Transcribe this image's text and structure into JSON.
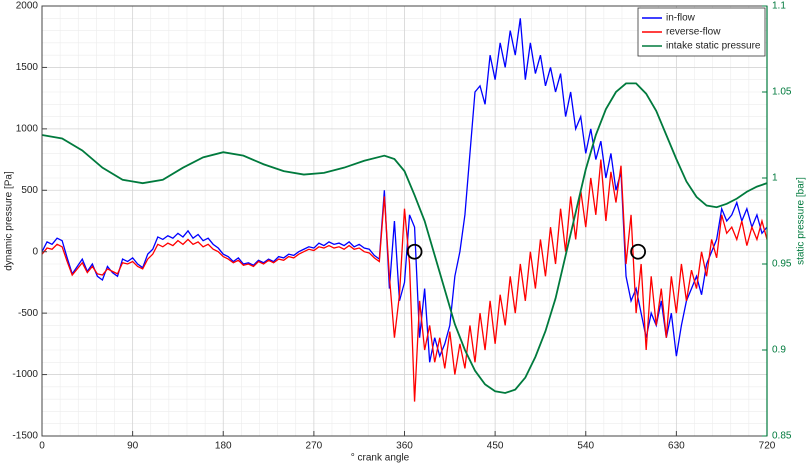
{
  "chart_data": {
    "type": "line",
    "xlabel": "° crank angle",
    "ylabel": "dynamic pressure [Pa]",
    "y2label": "static pressure [bar]",
    "xlim": [
      0,
      720
    ],
    "xticks": [
      0,
      90,
      180,
      270,
      360,
      450,
      540,
      630,
      720
    ],
    "ylim": [
      -1500,
      2000
    ],
    "yticks": [
      -1500,
      -1000,
      -500,
      0,
      500,
      1000,
      1500,
      2000
    ],
    "y2lim": [
      0.85,
      1.1
    ],
    "y2ticks": [
      0.85,
      0.9,
      0.95,
      1,
      1.05,
      1.1
    ],
    "grid": true,
    "minor_grid": true,
    "legend": "upper right",
    "y2color": "#007a3d",
    "x": [
      0,
      5,
      10,
      15,
      20,
      25,
      30,
      35,
      40,
      45,
      50,
      55,
      60,
      65,
      70,
      75,
      80,
      85,
      90,
      95,
      100,
      105,
      110,
      115,
      120,
      125,
      130,
      135,
      140,
      145,
      150,
      155,
      160,
      165,
      170,
      175,
      180,
      185,
      190,
      195,
      200,
      205,
      210,
      215,
      220,
      225,
      230,
      235,
      240,
      245,
      250,
      255,
      260,
      265,
      270,
      275,
      280,
      285,
      290,
      295,
      300,
      305,
      310,
      315,
      320,
      325,
      330,
      335,
      340,
      345,
      350,
      355,
      360,
      365,
      370,
      375,
      380,
      385,
      390,
      395,
      400,
      405,
      410,
      415,
      420,
      425,
      430,
      435,
      440,
      445,
      450,
      455,
      460,
      465,
      470,
      475,
      480,
      485,
      490,
      495,
      500,
      505,
      510,
      515,
      520,
      525,
      530,
      535,
      540,
      545,
      550,
      555,
      560,
      565,
      570,
      575,
      580,
      585,
      590,
      595,
      600,
      605,
      610,
      615,
      620,
      625,
      630,
      635,
      640,
      645,
      650,
      655,
      660,
      665,
      670,
      675,
      680,
      685,
      690,
      695,
      700,
      705,
      710,
      715,
      720
    ],
    "series": [
      {
        "name": "in-flow",
        "color": "#0000ff",
        "values": [
          0,
          80,
          60,
          110,
          90,
          -50,
          -180,
          -120,
          -60,
          -160,
          -100,
          -200,
          -230,
          -120,
          -170,
          -200,
          -60,
          -80,
          -50,
          -100,
          -130,
          -20,
          20,
          120,
          100,
          130,
          110,
          150,
          120,
          170,
          110,
          140,
          90,
          110,
          60,
          30,
          -20,
          -40,
          -80,
          -50,
          -100,
          -90,
          -110,
          -70,
          -90,
          -60,
          -80,
          -40,
          -50,
          -20,
          -30,
          0,
          20,
          40,
          30,
          70,
          50,
          80,
          60,
          70,
          50,
          80,
          40,
          60,
          30,
          20,
          -30,
          -60,
          500,
          -300,
          250,
          -400,
          -250,
          300,
          200,
          -700,
          -300,
          -900,
          -700,
          -850,
          -750,
          -600,
          -200,
          0,
          300,
          800,
          1300,
          1350,
          1200,
          1600,
          1400,
          1700,
          1500,
          1800,
          1600,
          1900,
          1400,
          1700,
          1450,
          1600,
          1350,
          1500,
          1300,
          1450,
          1100,
          1300,
          1000,
          1100,
          800,
          1000,
          750,
          900,
          600,
          800,
          500,
          650,
          -200,
          -400,
          -300,
          -500,
          -700,
          -500,
          -600,
          -400,
          -700,
          -500,
          -850,
          -600,
          -400,
          -300,
          -200,
          -350,
          -100,
          0,
          100,
          350,
          250,
          300,
          400,
          250,
          350,
          200,
          300,
          150,
          200
        ]
      },
      {
        "name": "reverse-flow",
        "color": "#ff0000",
        "values": [
          -20,
          30,
          20,
          60,
          40,
          -80,
          -190,
          -140,
          -90,
          -170,
          -120,
          -180,
          -190,
          -140,
          -160,
          -180,
          -90,
          -100,
          -80,
          -120,
          -140,
          -60,
          -20,
          60,
          40,
          70,
          50,
          90,
          60,
          100,
          60,
          80,
          40,
          60,
          20,
          0,
          -40,
          -60,
          -90,
          -70,
          -110,
          -100,
          -120,
          -80,
          -100,
          -70,
          -90,
          -60,
          -70,
          -40,
          -50,
          -20,
          0,
          20,
          10,
          40,
          30,
          50,
          30,
          40,
          20,
          50,
          20,
          30,
          0,
          -10,
          -50,
          -80,
          450,
          -200,
          -700,
          -350,
          350,
          -100,
          -1220,
          -400,
          -800,
          -600,
          -900,
          -700,
          -950,
          -650,
          -1000,
          -750,
          -950,
          -600,
          -900,
          -500,
          -800,
          -400,
          -750,
          -350,
          -600,
          -200,
          -500,
          -100,
          -400,
          0,
          -300,
          100,
          -200,
          200,
          -100,
          350,
          0,
          450,
          100,
          500,
          200,
          600,
          300,
          750,
          250,
          650,
          400,
          700,
          -100,
          300,
          -500,
          -100,
          -800,
          -200,
          -600,
          -300,
          -700,
          -200,
          -500,
          -100,
          -400,
          -150,
          -300,
          0,
          -200,
          100,
          -50,
          300,
          150,
          200,
          100,
          250,
          50,
          200,
          100,
          250,
          100
        ]
      },
      {
        "name": "intake static pressure",
        "color": "#007a3d",
        "axis": "y2",
        "x": [
          0,
          20,
          40,
          60,
          80,
          100,
          120,
          140,
          160,
          180,
          200,
          220,
          240,
          260,
          280,
          300,
          320,
          340,
          350,
          360,
          370,
          380,
          390,
          400,
          410,
          420,
          430,
          440,
          450,
          460,
          470,
          480,
          490,
          500,
          510,
          520,
          530,
          540,
          550,
          560,
          570,
          580,
          590,
          600,
          610,
          620,
          630,
          640,
          650,
          660,
          670,
          680,
          690,
          700,
          710,
          720
        ],
        "values": [
          1.025,
          1.023,
          1.016,
          1.006,
          0.999,
          0.997,
          0.999,
          1.006,
          1.012,
          1.015,
          1.013,
          1.008,
          1.004,
          1.002,
          1.003,
          1.006,
          1.01,
          1.013,
          1.011,
          1.004,
          0.99,
          0.975,
          0.955,
          0.935,
          0.915,
          0.9,
          0.888,
          0.88,
          0.876,
          0.875,
          0.877,
          0.884,
          0.896,
          0.911,
          0.93,
          0.955,
          0.98,
          1.005,
          1.025,
          1.04,
          1.05,
          1.055,
          1.055,
          1.049,
          1.039,
          1.025,
          1.011,
          0.998,
          0.989,
          0.984,
          0.983,
          0.985,
          0.988,
          0.992,
          0.995,
          0.997
        ]
      }
    ],
    "circles": [
      {
        "x": 370,
        "y": 0
      },
      {
        "x": 592,
        "y": 0
      }
    ]
  }
}
